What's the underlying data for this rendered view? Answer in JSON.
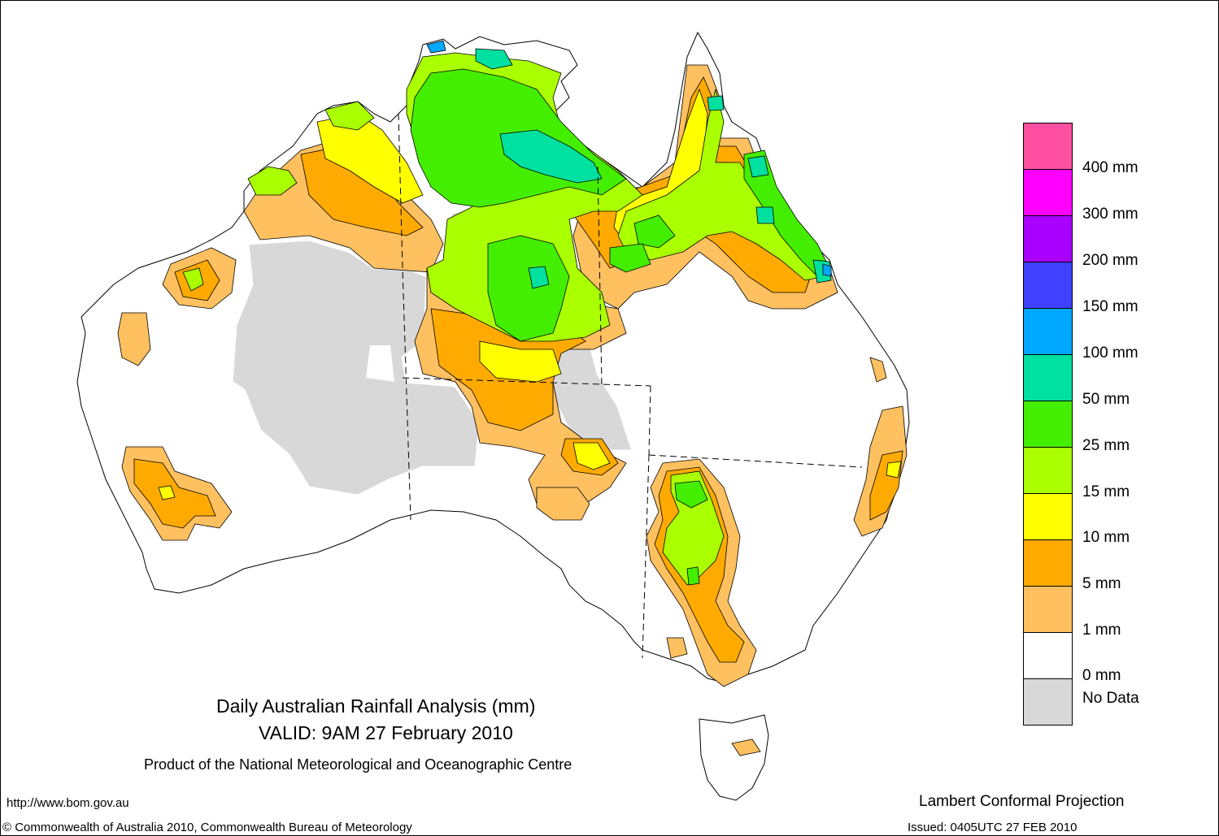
{
  "title": {
    "line1": "Daily Australian Rainfall Analysis (mm)",
    "line2": "VALID: 9AM 27 February 2010",
    "product": "Product of the National Meteorological and Oceanographic Centre"
  },
  "footer": {
    "url": "http://www.bom.gov.au",
    "copyright": "© Commonwealth of Australia 2010, Commonwealth Bureau of Meteorology",
    "projection": "Lambert Conformal Projection",
    "issued": "Issued: 0405UTC 27 FEB 2010"
  },
  "legend": {
    "bands": [
      {
        "color": "#ff4fa0"
      },
      {
        "color": "#ff00ff"
      },
      {
        "color": "#aa00ff"
      },
      {
        "color": "#4040ff"
      },
      {
        "color": "#00a8ff"
      },
      {
        "color": "#00e0a0"
      },
      {
        "color": "#44ee00"
      },
      {
        "color": "#aaff00"
      },
      {
        "color": "#ffff00"
      },
      {
        "color": "#ffaa00"
      },
      {
        "color": "#ffc060"
      },
      {
        "color": "#ffffff"
      },
      {
        "color": "#d8d8d8"
      }
    ],
    "labels": [
      "400 mm",
      "300 mm",
      "200 mm",
      "150 mm",
      "100 mm",
      "50 mm",
      "25 mm",
      "15 mm",
      "10 mm",
      "5 mm",
      "1 mm",
      "0 mm",
      "No Data"
    ]
  },
  "map_colors": {
    "no_data": "#d8d8d8",
    "r1_5": "#ffc060",
    "r5_10": "#ffaa00",
    "r10_15": "#ffff00",
    "r15_25": "#aaff00",
    "r25_50": "#44ee00",
    "r50_100": "#00e0a0",
    "r100_150": "#00a8ff"
  }
}
